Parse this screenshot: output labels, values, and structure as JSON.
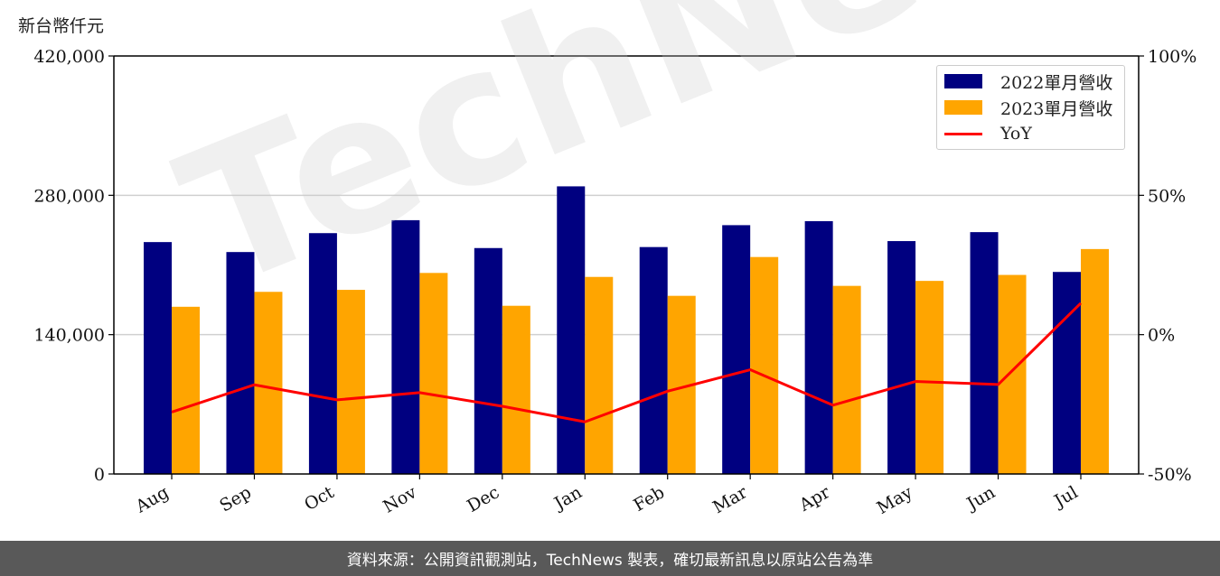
{
  "unit_label": "新台幣仟元",
  "footer_text": "資料來源：公開資訊觀測站，TechNews 製表，確切最新訊息以原站公告為準",
  "watermark": "TechNews",
  "colors": {
    "series_2022": "#000080",
    "series_2023": "#FFA500",
    "yoy": "#FF0000",
    "grid": "#d0d0d0"
  },
  "legend": {
    "items": [
      "2022單月營收",
      "2023單月營收",
      "YoY"
    ],
    "placement": "top-right"
  },
  "chart_data": {
    "type": "bar",
    "categories": [
      "Aug",
      "Sep",
      "Oct",
      "Nov",
      "Dec",
      "Jan",
      "Feb",
      "Mar",
      "Apr",
      "May",
      "Jun",
      "Jul"
    ],
    "series": [
      {
        "name": "2022單月營收",
        "type": "bar",
        "axis": "left",
        "values": [
          233000,
          223000,
          242000,
          255000,
          227000,
          289000,
          228000,
          250000,
          254000,
          234000,
          243000,
          203000
        ]
      },
      {
        "name": "2023單月營收",
        "type": "bar",
        "axis": "left",
        "values": [
          168000,
          183000,
          185000,
          202000,
          169000,
          198000,
          179000,
          218000,
          189000,
          194000,
          200000,
          226000
        ]
      },
      {
        "name": "YoY",
        "type": "line",
        "axis": "right",
        "values": [
          -27.8,
          -18.0,
          -23.4,
          -20.8,
          -25.7,
          -31.3,
          -20.3,
          -12.6,
          -25.3,
          -16.8,
          -17.9,
          11.3
        ]
      }
    ],
    "left_axis": {
      "ylim": [
        0,
        420000
      ],
      "ticks": [
        "0",
        "140,000",
        "280,000",
        "420,000"
      ],
      "tick_values": [
        0,
        140000,
        280000,
        420000
      ]
    },
    "right_axis": {
      "ylim": [
        -50,
        100
      ],
      "ticks": [
        "-50%",
        "0%",
        "50%",
        "100%"
      ],
      "tick_values": [
        -50,
        0,
        50,
        100
      ]
    },
    "grid": true
  }
}
